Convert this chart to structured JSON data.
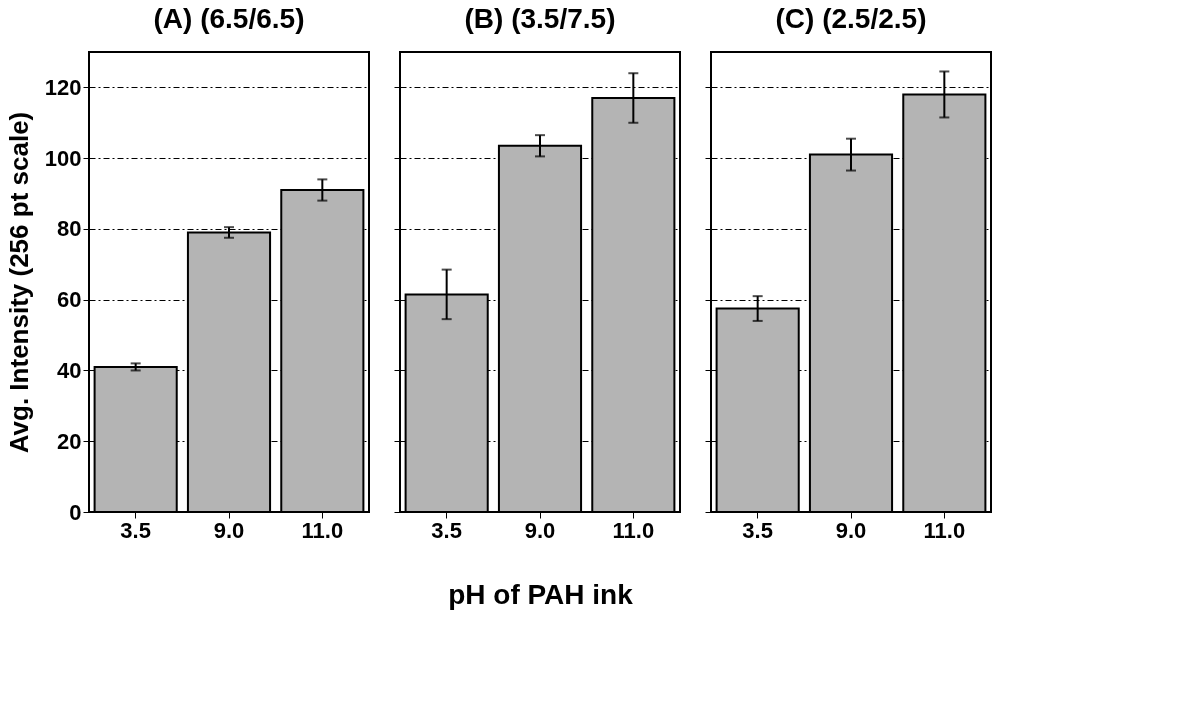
{
  "chart_data": [
    {
      "type": "bar",
      "title": "(A) (6.5/6.5)",
      "ylabel": "Avg. Intensity (256 pt scale)",
      "categories": [
        "3.5",
        "9.0",
        "11.0"
      ],
      "values": [
        41,
        79,
        91
      ],
      "errors": [
        1,
        1.5,
        3
      ],
      "color": "#b4b4b4",
      "ylim": [
        0,
        130
      ],
      "yticks": [
        0,
        20,
        40,
        60,
        80,
        100,
        120
      ],
      "grid": "y"
    },
    {
      "type": "bar",
      "title": "(B) (3.5/7.5)",
      "xlabel": "pH of PAH ink",
      "categories": [
        "3.5",
        "9.0",
        "11.0"
      ],
      "values": [
        61.5,
        103.5,
        117
      ],
      "errors": [
        7,
        3,
        7
      ],
      "color": "#b4b4b4",
      "ylim": [
        0,
        130
      ],
      "yticks": [
        0,
        20,
        40,
        60,
        80,
        100,
        120
      ],
      "grid": "y",
      "tick_labels": "x"
    },
    {
      "type": "bar",
      "title": "(C) (2.5/2.5)",
      "categories": [
        "3.5",
        "9.0",
        "11.0"
      ],
      "values": [
        57.5,
        101,
        118
      ],
      "errors": [
        3.5,
        4.5,
        6.5
      ],
      "color": "#b4b4b4",
      "ylim": [
        0,
        130
      ],
      "yticks": [
        0,
        20,
        40,
        60,
        80,
        100,
        120
      ],
      "grid": "y",
      "tick_labels": "x"
    }
  ]
}
